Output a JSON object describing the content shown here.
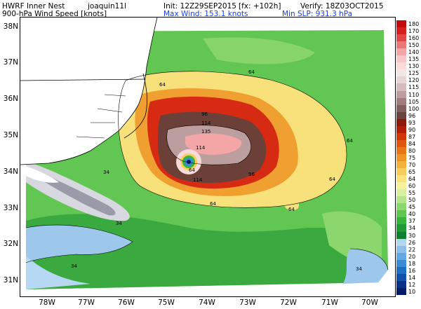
{
  "header": {
    "model": "HWRF Inner Nest",
    "storm": "joaquin11l",
    "init": "Init: 12Z29SEP2015",
    "forecast": "[fx: +102h]",
    "verify": "Verify: 18Z03OCT2015",
    "field": "900-hPa Wind Speed [knots]",
    "max_wind": "Max Wind: 153.1 knots",
    "min_slp": "Min SLP: 931.3 hPa"
  },
  "axes": {
    "lat_labels": [
      "38N",
      "37N",
      "36N",
      "35N",
      "34N",
      "33N",
      "32N",
      "31N"
    ],
    "lon_labels": [
      "78W",
      "77W",
      "76W",
      "75W",
      "74W",
      "73W",
      "72W",
      "71W",
      "70W"
    ]
  },
  "contours": {
    "labels": [
      "64",
      "64",
      "64",
      "64",
      "64",
      "96",
      "114",
      "135",
      "114",
      "64",
      "114",
      "96",
      "34",
      "34",
      "34",
      "64",
      "34"
    ]
  },
  "colorbar": {
    "levels": [
      "180",
      "170",
      "160",
      "150",
      "140",
      "135",
      "130",
      "125",
      "120",
      "115",
      "110",
      "105",
      "100",
      "96",
      "93",
      "90",
      "87",
      "84",
      "80",
      "75",
      "70",
      "65",
      "64",
      "60",
      "55",
      "50",
      "45",
      "40",
      "37",
      "34",
      "30",
      "26",
      "22",
      "20",
      "18",
      "16",
      "14",
      "12",
      "10"
    ],
    "colors": [
      "#c40a0a",
      "#d62020",
      "#e04848",
      "#ea7878",
      "#f4a6a6",
      "#f8c8c8",
      "#fbdada",
      "#f2e6e6",
      "#e6d6d6",
      "#d4bcbc",
      "#bc9e9e",
      "#a07c7c",
      "#84605c",
      "#6a4440",
      "#8a1a0a",
      "#b02008",
      "#d03808",
      "#e05510",
      "#ea7518",
      "#f09428",
      "#f4b23c",
      "#f8cc5a",
      "#fbe27a",
      "#f6f29c",
      "#d8f0a0",
      "#b4e48a",
      "#8cd66e",
      "#60c650",
      "#38b43c",
      "#1f9a34",
      "#0f8030",
      "#b2d6f0",
      "#8cc0ea",
      "#62a8e2",
      "#3a8cd6",
      "#1c70c4",
      "#1050a8",
      "#083088",
      "#041c68"
    ]
  }
}
